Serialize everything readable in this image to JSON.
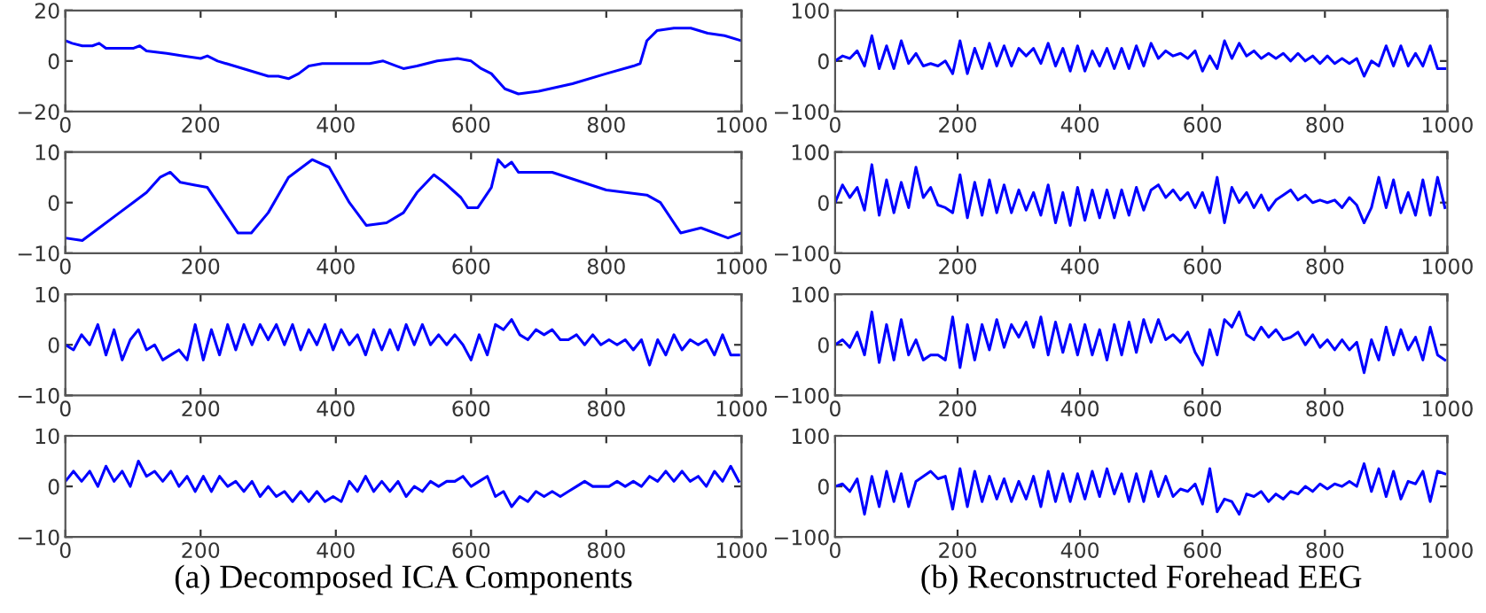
{
  "chart_data": [
    {
      "type": "line",
      "x": [
        0,
        10,
        25,
        40,
        50,
        60,
        75,
        90,
        100,
        110,
        120,
        150,
        175,
        200,
        210,
        225,
        250,
        275,
        300,
        315,
        330,
        345,
        360,
        380,
        400,
        420,
        450,
        470,
        490,
        500,
        520,
        550,
        580,
        600,
        615,
        630,
        640,
        650,
        670,
        700,
        750,
        800,
        840,
        850,
        860,
        875,
        900,
        925,
        950,
        975,
        1000
      ],
      "series": [
        {
          "color": "#0000ff",
          "values": [
            8,
            7,
            6,
            6,
            7,
            5,
            5,
            5,
            5,
            6,
            4,
            3,
            2,
            1,
            2,
            0,
            -2,
            -4,
            -6,
            -6,
            -7,
            -5,
            -2,
            -1,
            -1,
            -1,
            -1,
            0,
            -2,
            -3,
            -2,
            0,
            1,
            0,
            -3,
            -5,
            -8,
            -11,
            -13,
            -12,
            -9,
            -5,
            -2,
            -1,
            8,
            12,
            13,
            13,
            11,
            10,
            8
          ]
        }
      ],
      "xlim": [
        0,
        1000
      ],
      "ylim": [
        -20,
        20
      ],
      "xticks": [
        0,
        200,
        400,
        600,
        800,
        1000
      ],
      "yticks": [
        -20,
        0,
        20
      ],
      "grid": false,
      "marker": "none",
      "line_style": "solid"
    },
    {
      "type": "line",
      "x": [
        0,
        25,
        50,
        80,
        100,
        120,
        140,
        155,
        170,
        190,
        210,
        230,
        255,
        275,
        300,
        330,
        365,
        390,
        420,
        445,
        475,
        500,
        520,
        545,
        560,
        585,
        595,
        610,
        630,
        640,
        650,
        660,
        670,
        720,
        800,
        860,
        880,
        910,
        940,
        980,
        1000
      ],
      "series": [
        {
          "color": "#0000ff",
          "values": [
            -7,
            -7.5,
            -5,
            -2,
            0,
            2,
            5,
            6,
            4,
            3.5,
            3,
            -1,
            -6,
            -6,
            -2,
            5,
            8.5,
            7,
            0,
            -4.5,
            -4,
            -2,
            2,
            5.5,
            4,
            1,
            -1,
            -1,
            3,
            8.5,
            7,
            8,
            6,
            6,
            2.5,
            1.5,
            0,
            -6,
            -5,
            -7,
            -6
          ]
        }
      ],
      "xlim": [
        0,
        1000
      ],
      "ylim": [
        -10,
        10
      ],
      "xticks": [
        0,
        200,
        400,
        600,
        800,
        1000
      ],
      "yticks": [
        -10,
        0,
        10
      ],
      "grid": false,
      "marker": "none",
      "line_style": "solid"
    },
    {
      "type": "line",
      "x": [
        0,
        12,
        24,
        36,
        48,
        60,
        72,
        84,
        96,
        108,
        120,
        132,
        144,
        156,
        168,
        180,
        192,
        204,
        216,
        228,
        240,
        252,
        264,
        276,
        288,
        300,
        312,
        324,
        336,
        348,
        360,
        372,
        384,
        396,
        408,
        420,
        432,
        444,
        456,
        468,
        480,
        492,
        504,
        516,
        528,
        540,
        552,
        564,
        576,
        588,
        600,
        612,
        624,
        636,
        648,
        660,
        672,
        684,
        696,
        708,
        720,
        732,
        744,
        756,
        768,
        780,
        792,
        804,
        816,
        828,
        840,
        852,
        864,
        876,
        888,
        900,
        912,
        924,
        936,
        948,
        960,
        972,
        984,
        996
      ],
      "series": [
        {
          "color": "#0000ff",
          "values": [
            0,
            -1,
            2,
            0,
            4,
            -2,
            3,
            -3,
            1,
            3,
            -1,
            0,
            -3,
            -2,
            -1,
            -3,
            4,
            -3,
            3,
            -2,
            4,
            -1,
            4,
            0,
            4,
            1,
            4,
            0,
            4,
            -1,
            3,
            0,
            4,
            -1,
            3,
            0,
            2,
            -2,
            3,
            -1,
            3,
            -1,
            4,
            0,
            4,
            0,
            2,
            0,
            2,
            0,
            -3,
            2,
            -2,
            4,
            3,
            5,
            2,
            1,
            3,
            2,
            3,
            1,
            1,
            2,
            0,
            2,
            0,
            1,
            0,
            1,
            -1,
            1,
            -4,
            1,
            -2,
            2,
            -1,
            1,
            0,
            1,
            -2,
            2,
            -2,
            -2
          ]
        }
      ],
      "xlim": [
        0,
        1000
      ],
      "ylim": [
        -10,
        10
      ],
      "xticks": [
        0,
        200,
        400,
        600,
        800,
        1000
      ],
      "yticks": [
        -10,
        0,
        10
      ],
      "grid": false,
      "marker": "none",
      "line_style": "solid"
    },
    {
      "type": "line",
      "xlabel": "(a) Decomposed ICA Components",
      "x": [
        0,
        12,
        24,
        36,
        48,
        60,
        72,
        84,
        96,
        108,
        120,
        132,
        144,
        156,
        168,
        180,
        192,
        204,
        216,
        228,
        240,
        252,
        264,
        276,
        288,
        300,
        312,
        324,
        336,
        348,
        360,
        372,
        384,
        396,
        408,
        420,
        432,
        444,
        456,
        468,
        480,
        492,
        504,
        516,
        528,
        540,
        552,
        564,
        576,
        588,
        600,
        612,
        624,
        636,
        648,
        660,
        672,
        684,
        696,
        708,
        720,
        732,
        744,
        756,
        768,
        780,
        792,
        804,
        816,
        828,
        840,
        852,
        864,
        876,
        888,
        900,
        912,
        924,
        936,
        948,
        960,
        972,
        984,
        996
      ],
      "series": [
        {
          "color": "#0000ff",
          "values": [
            1,
            3,
            1,
            3,
            0,
            4,
            1,
            3,
            0,
            5,
            2,
            3,
            1,
            3,
            0,
            2,
            -1,
            2,
            -1,
            2,
            0,
            1,
            -1,
            1,
            -2,
            0,
            -2,
            -1,
            -3,
            -1,
            -3,
            -1,
            -3,
            -2,
            -3,
            1,
            -1,
            2,
            -1,
            1,
            -1,
            1,
            -2,
            0,
            -1,
            1,
            0,
            1,
            1,
            2,
            0,
            1,
            2,
            -2,
            -1,
            -4,
            -2,
            -3,
            -1,
            -2,
            -1,
            -2,
            -1,
            0,
            1,
            0,
            0,
            0,
            1,
            0,
            1,
            0,
            2,
            1,
            3,
            1,
            3,
            1,
            2,
            0,
            3,
            1,
            4,
            1
          ]
        }
      ],
      "xlim": [
        0,
        1000
      ],
      "ylim": [
        -10,
        10
      ],
      "xticks": [
        0,
        200,
        400,
        600,
        800,
        1000
      ],
      "yticks": [
        -10,
        0,
        10
      ],
      "grid": false,
      "marker": "none",
      "line_style": "solid"
    },
    {
      "type": "line",
      "x": [
        0,
        12,
        24,
        36,
        48,
        60,
        72,
        84,
        96,
        108,
        120,
        132,
        144,
        156,
        168,
        180,
        192,
        204,
        216,
        228,
        240,
        252,
        264,
        276,
        288,
        300,
        312,
        324,
        336,
        348,
        360,
        372,
        384,
        396,
        408,
        420,
        432,
        444,
        456,
        468,
        480,
        492,
        504,
        516,
        528,
        540,
        552,
        564,
        576,
        588,
        600,
        612,
        624,
        636,
        648,
        660,
        672,
        684,
        696,
        708,
        720,
        732,
        744,
        756,
        768,
        780,
        792,
        804,
        816,
        828,
        840,
        852,
        864,
        876,
        888,
        900,
        912,
        924,
        936,
        948,
        960,
        972,
        984,
        996
      ],
      "series": [
        {
          "color": "#0000ff",
          "values": [
            0,
            10,
            5,
            20,
            -10,
            50,
            -15,
            30,
            -15,
            40,
            -5,
            15,
            -10,
            -5,
            -10,
            0,
            -25,
            40,
            -25,
            25,
            -15,
            35,
            -10,
            30,
            -10,
            25,
            10,
            25,
            -5,
            35,
            -10,
            25,
            -20,
            30,
            -20,
            20,
            -10,
            25,
            -15,
            25,
            -15,
            30,
            -10,
            35,
            5,
            20,
            10,
            15,
            5,
            20,
            -20,
            10,
            -15,
            40,
            5,
            35,
            10,
            20,
            5,
            15,
            5,
            15,
            0,
            15,
            0,
            10,
            -5,
            10,
            -5,
            5,
            -5,
            5,
            -30,
            0,
            -10,
            30,
            -10,
            30,
            -10,
            15,
            -10,
            30,
            -15,
            -15
          ]
        }
      ],
      "xlim": [
        0,
        1000
      ],
      "ylim": [
        -100,
        100
      ],
      "xticks": [
        0,
        200,
        400,
        600,
        800,
        1000
      ],
      "yticks": [
        -100,
        0,
        100
      ],
      "grid": false,
      "marker": "none",
      "line_style": "solid"
    },
    {
      "type": "line",
      "x": [
        0,
        12,
        24,
        36,
        48,
        60,
        72,
        84,
        96,
        108,
        120,
        132,
        144,
        156,
        168,
        180,
        192,
        204,
        216,
        228,
        240,
        252,
        264,
        276,
        288,
        300,
        312,
        324,
        336,
        348,
        360,
        372,
        384,
        396,
        408,
        420,
        432,
        444,
        456,
        468,
        480,
        492,
        504,
        516,
        528,
        540,
        552,
        564,
        576,
        588,
        600,
        612,
        624,
        636,
        648,
        660,
        672,
        684,
        696,
        708,
        720,
        732,
        744,
        756,
        768,
        780,
        792,
        804,
        816,
        828,
        840,
        852,
        864,
        876,
        888,
        900,
        912,
        924,
        936,
        948,
        960,
        972,
        984,
        996
      ],
      "series": [
        {
          "color": "#0000ff",
          "values": [
            0,
            35,
            10,
            30,
            -15,
            75,
            -25,
            45,
            -20,
            40,
            -10,
            70,
            10,
            30,
            -5,
            -10,
            -20,
            55,
            -30,
            40,
            -25,
            45,
            -20,
            35,
            -20,
            25,
            -15,
            20,
            -25,
            35,
            -40,
            20,
            -45,
            30,
            -35,
            25,
            -30,
            25,
            -30,
            25,
            -25,
            30,
            -15,
            25,
            35,
            10,
            25,
            5,
            20,
            -10,
            20,
            -20,
            50,
            -40,
            30,
            0,
            20,
            -10,
            15,
            -15,
            5,
            15,
            25,
            5,
            15,
            0,
            5,
            0,
            5,
            -10,
            10,
            -5,
            -40,
            -10,
            50,
            -10,
            45,
            -20,
            20,
            -25,
            45,
            -25,
            50,
            -10
          ]
        }
      ],
      "xlim": [
        0,
        1000
      ],
      "ylim": [
        -100,
        100
      ],
      "xticks": [
        0,
        200,
        400,
        600,
        800,
        1000
      ],
      "yticks": [
        -100,
        0,
        100
      ],
      "grid": false,
      "marker": "none",
      "line_style": "solid"
    },
    {
      "type": "line",
      "x": [
        0,
        12,
        24,
        36,
        48,
        60,
        72,
        84,
        96,
        108,
        120,
        132,
        144,
        156,
        168,
        180,
        192,
        204,
        216,
        228,
        240,
        252,
        264,
        276,
        288,
        300,
        312,
        324,
        336,
        348,
        360,
        372,
        384,
        396,
        408,
        420,
        432,
        444,
        456,
        468,
        480,
        492,
        504,
        516,
        528,
        540,
        552,
        564,
        576,
        588,
        600,
        612,
        624,
        636,
        648,
        660,
        672,
        684,
        696,
        708,
        720,
        732,
        744,
        756,
        768,
        780,
        792,
        804,
        816,
        828,
        840,
        852,
        864,
        876,
        888,
        900,
        912,
        924,
        936,
        948,
        960,
        972,
        984,
        996
      ],
      "series": [
        {
          "color": "#0000ff",
          "values": [
            0,
            10,
            -5,
            25,
            -20,
            65,
            -35,
            40,
            -30,
            50,
            -20,
            10,
            -30,
            -20,
            -20,
            -30,
            55,
            -45,
            40,
            -30,
            40,
            -10,
            50,
            -5,
            40,
            15,
            45,
            -5,
            55,
            -20,
            45,
            -15,
            40,
            -20,
            40,
            -20,
            30,
            -30,
            40,
            -20,
            45,
            -15,
            50,
            5,
            50,
            10,
            20,
            5,
            25,
            -15,
            -40,
            30,
            -20,
            50,
            35,
            65,
            20,
            10,
            35,
            15,
            30,
            10,
            15,
            25,
            0,
            20,
            -5,
            10,
            -10,
            10,
            -10,
            5,
            -55,
            10,
            -30,
            35,
            -20,
            30,
            -10,
            15,
            -30,
            35,
            -20,
            -30
          ]
        }
      ],
      "xlim": [
        0,
        1000
      ],
      "ylim": [
        -100,
        100
      ],
      "xticks": [
        0,
        200,
        400,
        600,
        800,
        1000
      ],
      "yticks": [
        -100,
        0,
        100
      ],
      "grid": false,
      "marker": "none",
      "line_style": "solid"
    },
    {
      "type": "line",
      "xlabel": "(b) Reconstructed Forehead EEG",
      "x": [
        0,
        12,
        24,
        36,
        48,
        60,
        72,
        84,
        96,
        108,
        120,
        132,
        144,
        156,
        168,
        180,
        192,
        204,
        216,
        228,
        240,
        252,
        264,
        276,
        288,
        300,
        312,
        324,
        336,
        348,
        360,
        372,
        384,
        396,
        408,
        420,
        432,
        444,
        456,
        468,
        480,
        492,
        504,
        516,
        528,
        540,
        552,
        564,
        576,
        588,
        600,
        612,
        624,
        636,
        648,
        660,
        672,
        684,
        696,
        708,
        720,
        732,
        744,
        756,
        768,
        780,
        792,
        804,
        816,
        828,
        840,
        852,
        864,
        876,
        888,
        900,
        912,
        924,
        936,
        948,
        960,
        972,
        984,
        996
      ],
      "series": [
        {
          "color": "#0000ff",
          "values": [
            0,
            5,
            -10,
            15,
            -55,
            20,
            -40,
            30,
            -30,
            25,
            -40,
            10,
            20,
            30,
            15,
            20,
            -45,
            35,
            -40,
            30,
            -30,
            20,
            -25,
            15,
            -30,
            10,
            -25,
            20,
            -40,
            30,
            -30,
            25,
            -30,
            25,
            -25,
            30,
            -20,
            35,
            -15,
            25,
            -30,
            25,
            -30,
            30,
            -20,
            20,
            -20,
            -5,
            -10,
            5,
            -35,
            35,
            -50,
            -25,
            -30,
            -55,
            -15,
            -20,
            -10,
            -30,
            -15,
            -25,
            -10,
            -15,
            0,
            -10,
            5,
            -5,
            5,
            0,
            10,
            0,
            45,
            -10,
            35,
            -20,
            30,
            -25,
            10,
            5,
            30,
            -30,
            30,
            25
          ]
        }
      ],
      "xlim": [
        0,
        1000
      ],
      "ylim": [
        -100,
        100
      ],
      "xticks": [
        0,
        200,
        400,
        600,
        800,
        1000
      ],
      "yticks": [
        -100,
        0,
        100
      ],
      "grid": false,
      "marker": "none",
      "line_style": "solid"
    }
  ]
}
